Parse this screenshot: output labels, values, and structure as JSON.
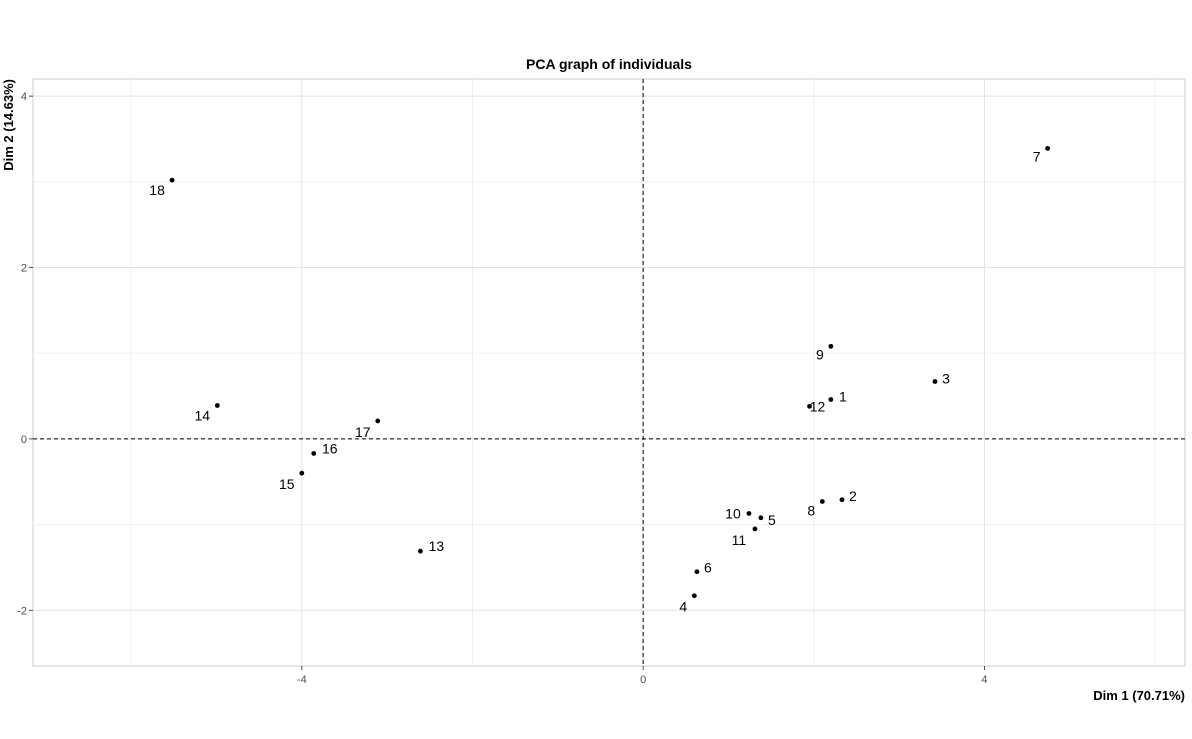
{
  "chart_data": {
    "type": "scatter",
    "title": "PCA graph of individuals",
    "xlabel": "Dim 1 (70.71%)",
    "ylabel": "Dim 2 (14.63%)",
    "xlim": [
      -7.15,
      6.35
    ],
    "ylim": [
      -2.65,
      4.2
    ],
    "xticks": [
      -4,
      0,
      4
    ],
    "yticks": [
      -2,
      0,
      2,
      4
    ],
    "x_minor_gridlines": [
      -6,
      -2,
      2,
      6
    ],
    "y_minor_gridlines": [
      -1,
      1,
      3
    ],
    "grid": true,
    "reference_lines": {
      "x": 0,
      "y": 0,
      "style": "dashed"
    },
    "points": [
      {
        "label": "1",
        "x": 2.2,
        "y": 0.46
      },
      {
        "label": "2",
        "x": 2.33,
        "y": -0.71
      },
      {
        "label": "3",
        "x": 3.42,
        "y": 0.67
      },
      {
        "label": "4",
        "x": 0.6,
        "y": -1.83
      },
      {
        "label": "5",
        "x": 1.38,
        "y": -0.92
      },
      {
        "label": "6",
        "x": 0.63,
        "y": -1.55
      },
      {
        "label": "7",
        "x": 4.74,
        "y": 3.39
      },
      {
        "label": "8",
        "x": 2.1,
        "y": -0.73
      },
      {
        "label": "9",
        "x": 2.2,
        "y": 1.08
      },
      {
        "label": "10",
        "x": 1.24,
        "y": -0.87
      },
      {
        "label": "11",
        "x": 1.31,
        "y": -1.05
      },
      {
        "label": "12",
        "x": 1.95,
        "y": 0.38
      },
      {
        "label": "13",
        "x": -2.61,
        "y": -1.31
      },
      {
        "label": "14",
        "x": -4.99,
        "y": 0.39
      },
      {
        "label": "15",
        "x": -4.0,
        "y": -0.4
      },
      {
        "label": "16",
        "x": -3.86,
        "y": -0.17
      },
      {
        "label": "17",
        "x": -3.11,
        "y": 0.21
      },
      {
        "label": "18",
        "x": -5.52,
        "y": 3.02
      }
    ]
  }
}
